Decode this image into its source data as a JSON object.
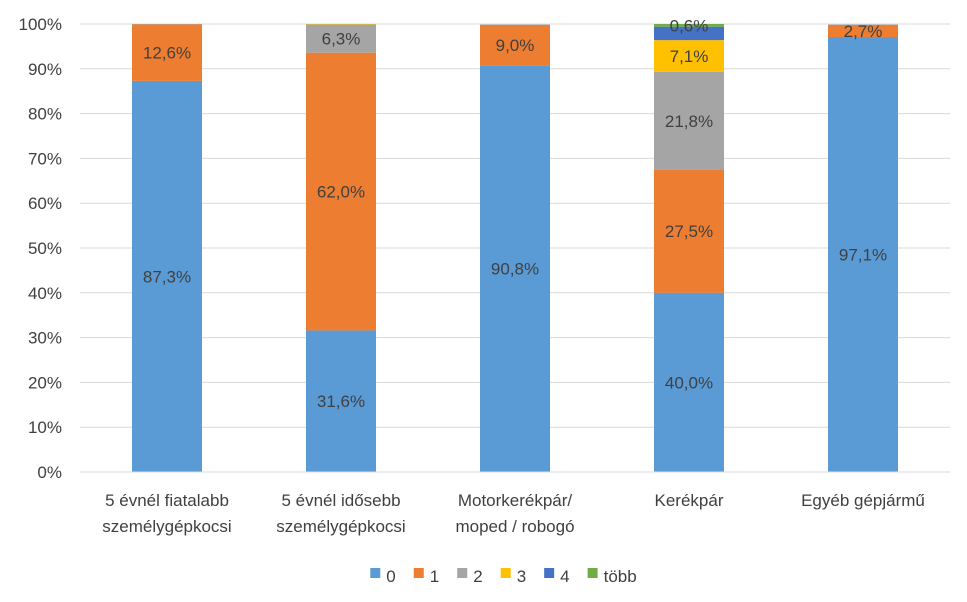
{
  "chart_data": {
    "type": "bar",
    "stacked": true,
    "percent": true,
    "categories": [
      [
        "5 évnél fiatalabb",
        "személygépkocsi"
      ],
      [
        "5 évnél idősebb",
        "személygépkocsi"
      ],
      [
        "Motorkerékpár/",
        "moped / robogó"
      ],
      [
        "Kerékpár"
      ],
      [
        "Egyéb gépjármű"
      ]
    ],
    "series": [
      {
        "name": "0",
        "color": "#5B9BD5",
        "values": [
          87.3,
          31.6,
          90.8,
          40.0,
          97.1
        ],
        "labels": [
          "87,3%",
          "31,6%",
          "90,8%",
          "40,0%",
          "97,1%"
        ]
      },
      {
        "name": "1",
        "color": "#ED7D31",
        "values": [
          12.6,
          62.0,
          9.0,
          27.5,
          2.7
        ],
        "labels": [
          "12,6%",
          "62,0%",
          "9,0%",
          "27,5%",
          "2,7%"
        ]
      },
      {
        "name": "2",
        "color": "#A5A5A5",
        "values": [
          0.1,
          6.3,
          0.1,
          21.8,
          0.1
        ],
        "labels": [
          "",
          "6,3%",
          "",
          "21,8%",
          ""
        ]
      },
      {
        "name": "3",
        "color": "#FFC000",
        "values": [
          0.0,
          0.1,
          0.0,
          7.1,
          0.0
        ],
        "labels": [
          "",
          "",
          "",
          "7,1%",
          ""
        ]
      },
      {
        "name": "4",
        "color": "#4472C4",
        "values": [
          0.0,
          0.0,
          0.0,
          3.0,
          0.0
        ],
        "labels": [
          "",
          "",
          "",
          "",
          ""
        ]
      },
      {
        "name": "több",
        "color": "#70AD47",
        "values": [
          0.0,
          0.0,
          0.0,
          0.6,
          0.0
        ],
        "labels": [
          "",
          "",
          "",
          "0,6%",
          ""
        ]
      }
    ],
    "yticks": [
      "0%",
      "10%",
      "20%",
      "30%",
      "40%",
      "50%",
      "60%",
      "70%",
      "80%",
      "90%",
      "100%"
    ],
    "ylim": [
      0,
      100
    ],
    "grid": true,
    "legend_position": "bottom"
  }
}
